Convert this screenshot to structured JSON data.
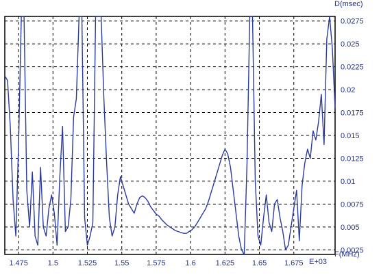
{
  "chart_data": {
    "type": "line",
    "title": "",
    "xlabel": "F(MHz)",
    "ylabel": "D(msec)",
    "x_multiplier": "E+03",
    "xlim": [
      1.465,
      1.705
    ],
    "ylim": [
      0.002,
      0.028
    ],
    "y_axis_position": "right",
    "grid": true,
    "grid_style": "dashed",
    "legend": "none",
    "x_ticks": [
      {
        "value": 1.475,
        "label": "1.475"
      },
      {
        "value": 1.5,
        "label": "1.5"
      },
      {
        "value": 1.525,
        "label": "1.525"
      },
      {
        "value": 1.55,
        "label": "1.55"
      },
      {
        "value": 1.575,
        "label": "1.575"
      },
      {
        "value": 1.6,
        "label": "1.6"
      },
      {
        "value": 1.625,
        "label": "1.625"
      },
      {
        "value": 1.65,
        "label": "1.65"
      },
      {
        "value": 1.675,
        "label": "1.675"
      }
    ],
    "y_ticks": [
      {
        "value": 0.0025,
        "label": "0.0025"
      },
      {
        "value": 0.005,
        "label": "0.005"
      },
      {
        "value": 0.0075,
        "label": "0.0075"
      },
      {
        "value": 0.01,
        "label": "0.01"
      },
      {
        "value": 0.0125,
        "label": "0.0125"
      },
      {
        "value": 0.015,
        "label": "0.015"
      },
      {
        "value": 0.0175,
        "label": "0.0175"
      },
      {
        "value": 0.02,
        "label": "0.02"
      },
      {
        "value": 0.0225,
        "label": "0.0225"
      },
      {
        "value": 0.025,
        "label": "0.025"
      },
      {
        "value": 0.0275,
        "label": "0.0275"
      }
    ],
    "colors": {
      "line": "#2a3a9c",
      "grid": "#000000",
      "text": "#1f2f8f"
    },
    "series": [
      {
        "x": [
          1.465,
          1.467,
          1.469,
          1.471,
          1.473,
          1.475,
          1.477,
          1.479,
          1.481,
          1.483,
          1.485,
          1.487,
          1.489,
          1.491,
          1.493,
          1.495,
          1.497,
          1.499,
          1.501,
          1.503,
          1.505,
          1.507,
          1.509,
          1.511,
          1.513,
          1.515,
          1.517,
          1.519,
          1.521,
          1.523,
          1.525,
          1.527,
          1.529,
          1.531,
          1.533,
          1.535,
          1.537,
          1.539,
          1.541,
          1.543,
          1.545,
          1.547,
          1.549,
          1.551,
          1.553,
          1.555,
          1.557,
          1.559,
          1.561,
          1.563,
          1.565,
          1.567,
          1.569,
          1.571,
          1.573,
          1.575,
          1.577,
          1.579,
          1.581,
          1.583,
          1.585,
          1.587,
          1.589,
          1.591,
          1.593,
          1.595,
          1.597,
          1.599,
          1.601,
          1.603,
          1.605,
          1.607,
          1.609,
          1.611,
          1.613,
          1.615,
          1.617,
          1.619,
          1.621,
          1.623,
          1.625,
          1.627,
          1.629,
          1.631,
          1.633,
          1.635,
          1.637,
          1.639,
          1.641,
          1.643,
          1.645,
          1.647,
          1.649,
          1.651,
          1.653,
          1.655,
          1.657,
          1.659,
          1.661,
          1.663,
          1.665,
          1.667,
          1.669,
          1.671,
          1.673,
          1.675,
          1.677,
          1.679,
          1.681,
          1.683,
          1.685,
          1.687,
          1.689,
          1.691,
          1.693,
          1.695,
          1.697,
          1.699,
          1.701,
          1.703,
          1.705
        ],
        "y": [
          0.0215,
          0.021,
          0.016,
          0.008,
          0.004,
          0.014,
          0.028,
          0.028,
          0.009,
          0.005,
          0.011,
          0.004,
          0.003,
          0.0115,
          0.005,
          0.004,
          0.007,
          0.0085,
          0.0065,
          0.003,
          0.0105,
          0.016,
          0.0045,
          0.005,
          0.008,
          0.017,
          0.019,
          0.028,
          0.028,
          0.006,
          0.003,
          0.004,
          0.0055,
          0.028,
          0.028,
          0.028,
          0.019,
          0.012,
          0.006,
          0.004,
          0.005,
          0.0085,
          0.0105,
          0.0095,
          0.0085,
          0.0075,
          0.007,
          0.0065,
          0.0075,
          0.0082,
          0.0084,
          0.0082,
          0.0078,
          0.0072,
          0.0068,
          0.0064,
          0.0062,
          0.0058,
          0.0055,
          0.0052,
          0.005,
          0.0048,
          0.0046,
          0.0045,
          0.0044,
          0.0043,
          0.0043,
          0.0045,
          0.0047,
          0.005,
          0.0055,
          0.006,
          0.0065,
          0.007,
          0.0078,
          0.0088,
          0.0098,
          0.0108,
          0.0118,
          0.0128,
          0.0135,
          0.013,
          0.0115,
          0.009,
          0.0065,
          0.004,
          0.0025,
          0.002,
          0.012,
          0.028,
          0.028,
          0.01,
          0.004,
          0.003,
          0.006,
          0.0085,
          0.0055,
          0.0045,
          0.0075,
          0.008,
          0.006,
          0.0045,
          0.0025,
          0.003,
          0.005,
          0.007,
          0.009,
          0.0035,
          0.0095,
          0.012,
          0.0135,
          0.0125,
          0.0155,
          0.0145,
          0.0165,
          0.0195,
          0.014,
          0.0255,
          0.028,
          0.0245,
          0.018
        ]
      }
    ]
  }
}
